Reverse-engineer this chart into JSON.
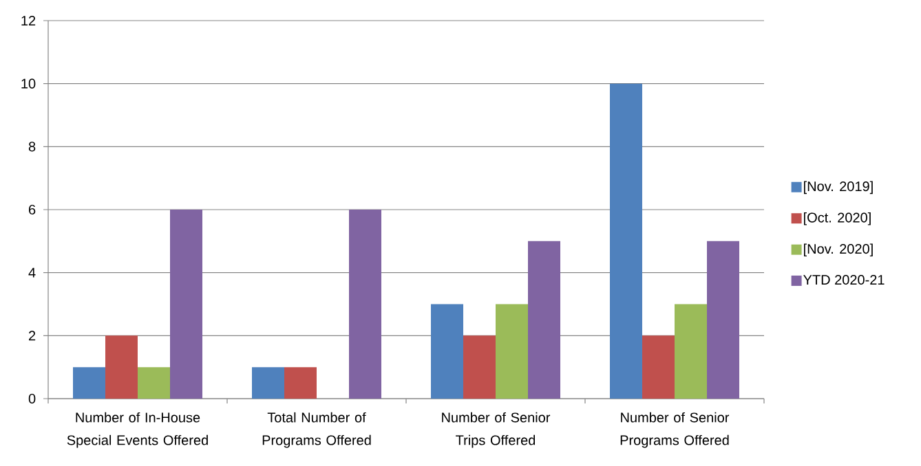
{
  "chart_data": {
    "type": "bar",
    "categories": [
      "Number of In-House Special Events Offered",
      "Total Number of Programs Offered",
      "Number of Senior Trips Offered",
      "Number of Senior Programs Offered"
    ],
    "series": [
      {
        "name": "[Nov. 2019]",
        "color": "#4f81bd",
        "values": [
          1,
          1,
          3,
          10
        ]
      },
      {
        "name": "[Oct. 2020]",
        "color": "#c0504d",
        "values": [
          2,
          1,
          2,
          2
        ]
      },
      {
        "name": "[Nov. 2020]",
        "color": "#9bbb59",
        "values": [
          1,
          null,
          3,
          3
        ]
      },
      {
        "name": "YTD 2020-21",
        "color": "#8064a2",
        "values": [
          6,
          6,
          5,
          5
        ]
      }
    ],
    "ylim": [
      0,
      12
    ],
    "yticks": [
      0,
      2,
      4,
      6,
      8,
      10,
      12
    ],
    "grid": "y",
    "legend": "right"
  }
}
